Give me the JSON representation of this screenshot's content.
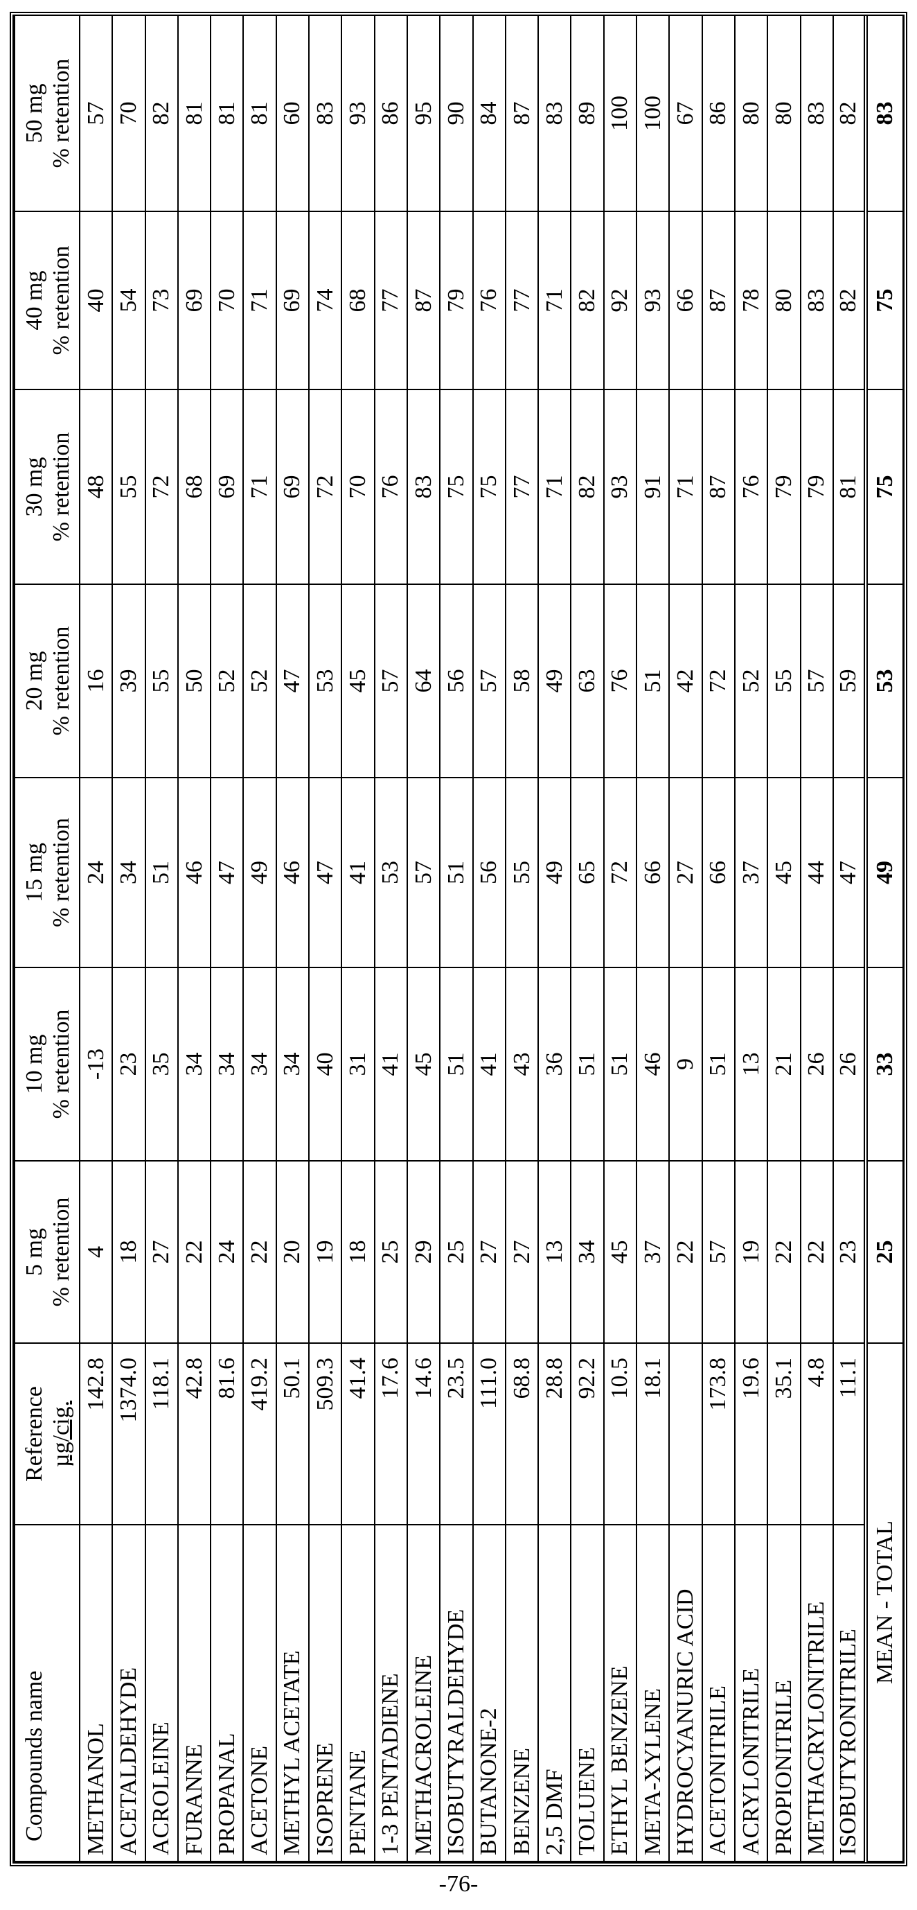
{
  "table": {
    "headers": {
      "compound": "Compounds name",
      "reference": [
        "Reference",
        "µg/cig."
      ],
      "doses": [
        [
          "5 mg",
          "% retention"
        ],
        [
          "10 mg",
          "% retention"
        ],
        [
          "15 mg",
          "% retention"
        ],
        [
          "20 mg",
          "% retention"
        ],
        [
          "30 mg",
          "% retention"
        ],
        [
          "40 mg",
          "% retention"
        ],
        [
          "50 mg",
          "% retention"
        ]
      ]
    },
    "rows": [
      {
        "name": "METHANOL",
        "reference": "142.8",
        "values": [
          "4",
          "-13",
          "24",
          "16",
          "48",
          "40",
          "57"
        ]
      },
      {
        "name": "ACETALDEHYDE",
        "reference": "1374.0",
        "values": [
          "18",
          "23",
          "34",
          "39",
          "55",
          "54",
          "70"
        ]
      },
      {
        "name": "ACROLEINE",
        "reference": "118.1",
        "values": [
          "27",
          "35",
          "51",
          "55",
          "72",
          "73",
          "82"
        ]
      },
      {
        "name": "FURANNE",
        "reference": "42.8",
        "values": [
          "22",
          "34",
          "46",
          "50",
          "68",
          "69",
          "81"
        ]
      },
      {
        "name": "PROPANAL",
        "reference": "81.6",
        "values": [
          "24",
          "34",
          "47",
          "52",
          "69",
          "70",
          "81"
        ]
      },
      {
        "name": "ACETONE",
        "reference": "419.2",
        "values": [
          "22",
          "34",
          "49",
          "52",
          "71",
          "71",
          "81"
        ]
      },
      {
        "name": "METHYL ACETATE",
        "reference": "50.1",
        "values": [
          "20",
          "34",
          "46",
          "47",
          "69",
          "69",
          "60"
        ]
      },
      {
        "name": "ISOPRENE",
        "reference": "509.3",
        "values": [
          "19",
          "40",
          "47",
          "53",
          "72",
          "74",
          "83"
        ]
      },
      {
        "name": "PENTANE",
        "reference": "41.4",
        "values": [
          "18",
          "31",
          "41",
          "45",
          "70",
          "68",
          "93"
        ]
      },
      {
        "name": "1-3 PENTADIENE",
        "reference": "17.6",
        "values": [
          "25",
          "41",
          "53",
          "57",
          "76",
          "77",
          "86"
        ]
      },
      {
        "name": "METHACROLEINE",
        "reference": "14.6",
        "values": [
          "29",
          "45",
          "57",
          "64",
          "83",
          "87",
          "95"
        ]
      },
      {
        "name": "ISOBUTYRALDEHYDE",
        "reference": "23.5",
        "values": [
          "25",
          "51",
          "51",
          "56",
          "75",
          "79",
          "90"
        ]
      },
      {
        "name": "BUTANONE-2",
        "reference": "111.0",
        "values": [
          "27",
          "41",
          "56",
          "57",
          "75",
          "76",
          "84"
        ]
      },
      {
        "name": "BENZENE",
        "reference": "68.8",
        "values": [
          "27",
          "43",
          "55",
          "58",
          "77",
          "77",
          "87"
        ]
      },
      {
        "name": "2,5 DMF",
        "reference": "28.8",
        "values": [
          "13",
          "36",
          "49",
          "49",
          "71",
          "71",
          "83"
        ]
      },
      {
        "name": "TOLUENE",
        "reference": "92.2",
        "values": [
          "34",
          "51",
          "65",
          "63",
          "82",
          "82",
          "89"
        ]
      },
      {
        "name": "ETHYL BENZENE",
        "reference": "10.5",
        "values": [
          "45",
          "51",
          "72",
          "76",
          "93",
          "92",
          "100"
        ]
      },
      {
        "name": "META-XYLENE",
        "reference": "18.1",
        "values": [
          "37",
          "46",
          "66",
          "51",
          "91",
          "93",
          "100"
        ]
      },
      {
        "name": "HYDROCYANURIC ACID",
        "reference": "",
        "values": [
          "22",
          "9",
          "27",
          "42",
          "71",
          "66",
          "67"
        ]
      },
      {
        "name": "ACETONITRILE",
        "reference": "173.8",
        "values": [
          "57",
          "51",
          "66",
          "72",
          "87",
          "87",
          "86"
        ]
      },
      {
        "name": "ACRYLONITRILE",
        "reference": "19.6",
        "values": [
          "19",
          "13",
          "37",
          "52",
          "76",
          "78",
          "80"
        ]
      },
      {
        "name": "PROPIONITRILE",
        "reference": "35.1",
        "values": [
          "22",
          "21",
          "45",
          "55",
          "79",
          "80",
          "80"
        ]
      },
      {
        "name": "METHACRYLONITRILE",
        "reference": "4.8",
        "values": [
          "22",
          "26",
          "44",
          "57",
          "79",
          "83",
          "83"
        ]
      },
      {
        "name": "ISOBUTYRONITRILE",
        "reference": "11.1",
        "values": [
          "23",
          "26",
          "47",
          "59",
          "81",
          "82",
          "82"
        ]
      }
    ],
    "mean": {
      "label": "MEAN - TOTAL",
      "values": [
        "25",
        "33",
        "49",
        "53",
        "75",
        "75",
        "83"
      ]
    }
  },
  "page_number": "-76-"
}
